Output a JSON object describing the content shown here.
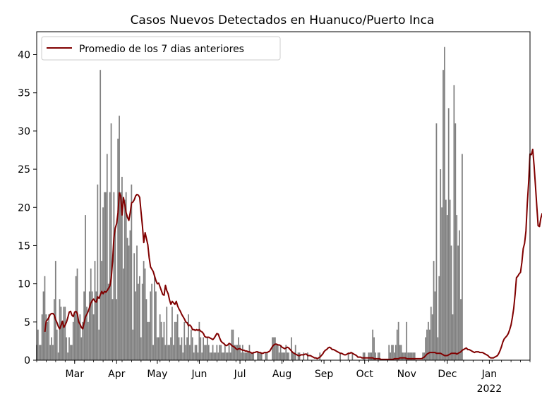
{
  "chart_data": {
    "type": "bar",
    "title": "Casos Nuevos Detectados en Huanuco/Puerto Inca",
    "xlabel": "",
    "ylabel": "",
    "ylim": [
      0,
      43
    ],
    "yticks": [
      0,
      5,
      10,
      15,
      20,
      25,
      30,
      35,
      40
    ],
    "xticks": [
      {
        "label": "Mar",
        "sublabel": "",
        "date": "2021-03-01"
      },
      {
        "label": "Apr",
        "sublabel": "",
        "date": "2021-04-01"
      },
      {
        "label": "May",
        "sublabel": "",
        "date": "2021-05-01"
      },
      {
        "label": "Jun",
        "sublabel": "",
        "date": "2021-06-01"
      },
      {
        "label": "Jul",
        "sublabel": "",
        "date": "2021-07-01"
      },
      {
        "label": "Aug",
        "sublabel": "",
        "date": "2021-08-01"
      },
      {
        "label": "Sep",
        "sublabel": "",
        "date": "2021-09-01"
      },
      {
        "label": "Oct",
        "sublabel": "",
        "date": "2021-10-01"
      },
      {
        "label": "Nov",
        "sublabel": "",
        "date": "2021-11-01"
      },
      {
        "label": "Dec",
        "sublabel": "",
        "date": "2021-12-01"
      },
      {
        "label": "Jan",
        "sublabel": "2022",
        "date": "2022-01-01"
      }
    ],
    "xlim": [
      "2021-02-01",
      "2022-01-31"
    ],
    "grid": false,
    "legend_position": "top-left",
    "series": [
      {
        "name": "",
        "kind": "bar",
        "color": "#808080",
        "start_date": "2021-02-01",
        "values": [
          2,
          4,
          2,
          2,
          6,
          9,
          11,
          6,
          5,
          6,
          2,
          3,
          2,
          8,
          13,
          4,
          1,
          8,
          7,
          5,
          7,
          7,
          3,
          1,
          3,
          2,
          2,
          5,
          6,
          11,
          12,
          5,
          6,
          3,
          5,
          9,
          19,
          7,
          5,
          9,
          12,
          9,
          6,
          13,
          9,
          23,
          4,
          38,
          13,
          20,
          22,
          22,
          27,
          10,
          22,
          31,
          8,
          22,
          17,
          8,
          29,
          32,
          22,
          24,
          12,
          21,
          22,
          16,
          15,
          17,
          23,
          4,
          14,
          9,
          15,
          10,
          11,
          3,
          10,
          13,
          12,
          8,
          5,
          5,
          9,
          10,
          2,
          11,
          9,
          3,
          3,
          6,
          5,
          3,
          5,
          2,
          7,
          2,
          2,
          3,
          7,
          2,
          5,
          5,
          6,
          3,
          2,
          3,
          1,
          5,
          2,
          3,
          6,
          2,
          4,
          3,
          1,
          2,
          2,
          1,
          5,
          3,
          1,
          3,
          2,
          2,
          3,
          2,
          1,
          1,
          2,
          1,
          1,
          2,
          1,
          2,
          2,
          1,
          1,
          2,
          1,
          1,
          2,
          1,
          4,
          4,
          2,
          2,
          2,
          3,
          2,
          1,
          2,
          1,
          1,
          1,
          1,
          2,
          1,
          1,
          1,
          0,
          0,
          1,
          1,
          1,
          1,
          0,
          0,
          1,
          1,
          0,
          0,
          0,
          3,
          3,
          3,
          2,
          2,
          1,
          2,
          1,
          1,
          1,
          2,
          1,
          1,
          0,
          3,
          1,
          1,
          2,
          0,
          1,
          1,
          0,
          0,
          1,
          0,
          0,
          1,
          0,
          0,
          0,
          0,
          0,
          0,
          0,
          0,
          1,
          0,
          0,
          0,
          0,
          0,
          0,
          0,
          0,
          0,
          0,
          0,
          0,
          0,
          0,
          1,
          0,
          0,
          0,
          0,
          0,
          1,
          0,
          0,
          1,
          0,
          0,
          0,
          0,
          0,
          0,
          0,
          1,
          1,
          0,
          0,
          1,
          1,
          1,
          4,
          3,
          1,
          0,
          1,
          1,
          0,
          0,
          0,
          0,
          0,
          0,
          2,
          1,
          2,
          2,
          1,
          2,
          4,
          5,
          2,
          2,
          1,
          1,
          1,
          5,
          1,
          1,
          1,
          1,
          1,
          1,
          0,
          0,
          0,
          0,
          0,
          1,
          1,
          3,
          4,
          5,
          4,
          7,
          6,
          13,
          9,
          31,
          3,
          11,
          25,
          20,
          38,
          41,
          21,
          19,
          33,
          21,
          15,
          6,
          36,
          31,
          19,
          15,
          17,
          8,
          27
        ]
      },
      {
        "name": "Promedio de los 7 dias anteriores",
        "kind": "line",
        "color": "#800000",
        "start_date": "2021-02-07",
        "values": [
          3.7,
          5.1,
          5.3,
          5.6,
          6.0,
          6.1,
          6.1,
          5.9,
          5.3,
          4.9,
          4.4,
          4.1,
          4.6,
          5.1,
          4.3,
          4.6,
          5.0,
          5.6,
          6.3,
          6.4,
          5.9,
          5.7,
          6.3,
          6.4,
          6.1,
          5.0,
          4.7,
          4.3,
          4.1,
          4.9,
          5.7,
          6.0,
          6.4,
          6.9,
          7.5,
          7.8,
          8.0,
          7.7,
          7.6,
          8.3,
          8.1,
          8.6,
          9.0,
          8.7,
          9.0,
          8.9,
          9.1,
          9.4,
          9.7,
          10.7,
          13.0,
          16.1,
          17.3,
          17.9,
          19.3,
          21.9,
          21.5,
          19.0,
          21.3,
          20.4,
          19.3,
          18.7,
          18.3,
          19.3,
          20.6,
          20.7,
          21.0,
          21.5,
          21.7,
          21.6,
          21.3,
          19.4,
          17.6,
          15.4,
          16.7,
          15.9,
          15.1,
          13.4,
          12.2,
          11.9,
          11.6,
          11.0,
          10.4,
          10.0,
          10.1,
          9.6,
          9.1,
          8.6,
          8.5,
          9.8,
          9.1,
          8.7,
          7.9,
          7.3,
          7.7,
          7.5,
          7.3,
          7.7,
          7.1,
          6.7,
          6.4,
          6.0,
          5.7,
          5.4,
          5.0,
          4.9,
          4.5,
          4.6,
          4.4,
          4.0,
          4.0,
          3.9,
          4.0,
          3.9,
          4.0,
          3.8,
          3.7,
          3.5,
          3.1,
          3.0,
          3.0,
          3.0,
          2.9,
          2.8,
          2.7,
          2.9,
          3.2,
          3.5,
          3.4,
          2.9,
          2.5,
          2.3,
          2.2,
          2.0,
          1.9,
          2.0,
          2.2,
          2.1,
          1.9,
          1.8,
          1.7,
          1.5,
          1.4,
          1.5,
          1.5,
          1.4,
          1.3,
          1.3,
          1.2,
          1.2,
          1.1,
          1.1,
          1.0,
          0.9,
          1.0,
          1.0,
          1.1,
          1.1,
          1.0,
          1.0,
          0.9,
          0.9,
          1.0,
          1.0,
          1.0,
          1.1,
          1.2,
          1.5,
          1.8,
          2.0,
          2.1,
          2.1,
          2.0,
          2.0,
          1.9,
          1.7,
          1.6,
          1.5,
          1.6,
          1.7,
          1.6,
          1.4,
          1.2,
          1.0,
          0.9,
          0.8,
          0.7,
          0.6,
          0.6,
          0.7,
          0.7,
          0.7,
          0.8,
          0.8,
          0.6,
          0.6,
          0.6,
          0.5,
          0.4,
          0.3,
          0.3,
          0.2,
          0.3,
          0.4,
          0.6,
          0.8,
          1.1,
          1.3,
          1.4,
          1.6,
          1.7,
          1.6,
          1.4,
          1.4,
          1.3,
          1.2,
          1.1,
          1.0,
          0.9,
          0.9,
          0.8,
          0.7,
          0.7,
          0.8,
          0.9,
          0.9,
          1.0,
          0.9,
          0.8,
          0.7,
          0.6,
          0.4,
          0.4,
          0.4,
          0.3,
          0.3,
          0.3,
          0.3,
          0.3,
          0.3,
          0.3,
          0.3,
          0.3,
          0.2,
          0.2,
          0.2,
          0.2,
          0.2,
          0.1,
          0.1,
          0.1,
          0.1,
          0.1,
          0.1,
          0.1,
          0.1,
          0.1,
          0.1,
          0.2,
          0.2,
          0.2,
          0.2,
          0.3,
          0.3,
          0.3,
          0.3,
          0.3,
          0.2,
          0.2,
          0.2,
          0.2,
          0.2,
          0.2,
          0.2,
          0.2,
          0.2,
          0.2,
          0.2,
          0.2,
          0.3,
          0.4,
          0.6,
          0.8,
          0.9,
          1.0,
          1.0,
          1.0,
          1.0,
          1.0,
          0.9,
          0.9,
          0.9,
          0.9,
          0.8,
          0.7,
          0.6,
          0.6,
          0.6,
          0.7,
          0.8,
          0.9,
          0.9,
          0.9,
          0.9,
          0.8,
          0.9,
          1.0,
          1.1,
          1.3,
          1.4,
          1.5,
          1.6,
          1.4,
          1.4,
          1.3,
          1.2,
          1.1,
          1.0,
          1.1,
          1.1,
          1.1,
          1.0,
          1.0,
          1.0,
          0.9,
          0.8,
          0.7,
          0.6,
          0.4,
          0.3,
          0.3,
          0.3,
          0.4,
          0.5,
          0.6,
          0.9,
          1.3,
          1.8,
          2.4,
          2.8,
          3.0,
          3.2,
          3.5,
          4.0,
          4.6,
          5.6,
          6.8,
          8.6,
          10.8,
          11.0,
          11.3,
          11.5,
          12.8,
          14.6,
          15.3,
          16.9,
          20.5,
          23.3,
          27.0,
          26.9,
          27.6,
          25.5,
          22.9,
          20.2,
          17.6,
          17.5,
          18.6,
          19.2,
          19.0,
          18.9,
          20.0,
          20.6,
          19.0
        ]
      }
    ]
  }
}
